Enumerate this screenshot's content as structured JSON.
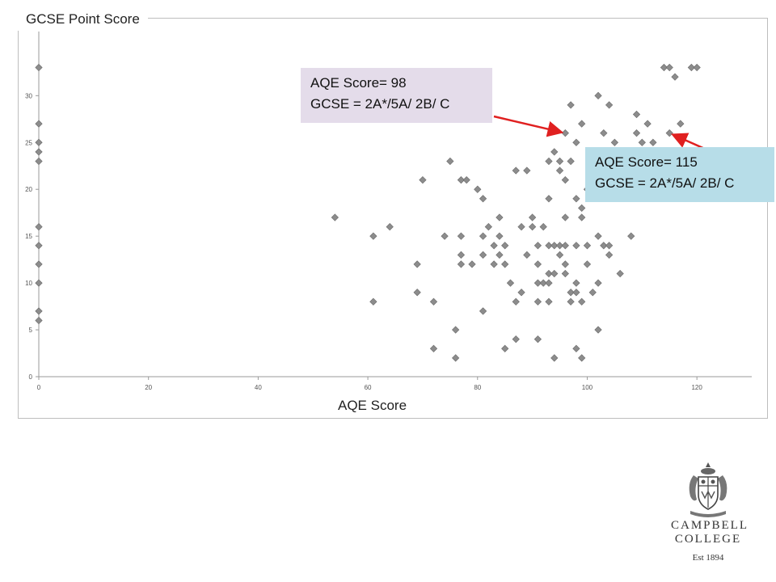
{
  "chart_data": {
    "type": "scatter",
    "ylabel": "GCSE Point Score",
    "xlabel": "AQE Score",
    "xlim": [
      0,
      130
    ],
    "ylim": [
      0,
      36.5
    ],
    "x_ticks": [
      0,
      20,
      40,
      60,
      80,
      100,
      120
    ],
    "y_ticks": [
      0,
      5,
      10,
      15,
      20,
      25,
      30
    ],
    "grid": false,
    "legend": "none",
    "marker": "diamond",
    "marker_color": "#8c8c8c",
    "points": [
      [
        0,
        33
      ],
      [
        0,
        27
      ],
      [
        0,
        25
      ],
      [
        0,
        24
      ],
      [
        0,
        23
      ],
      [
        0,
        16
      ],
      [
        0,
        14
      ],
      [
        0,
        12
      ],
      [
        0,
        10
      ],
      [
        0,
        7
      ],
      [
        0,
        6
      ],
      [
        54,
        17
      ],
      [
        61,
        15
      ],
      [
        61,
        8
      ],
      [
        64,
        16
      ],
      [
        69,
        12
      ],
      [
        69,
        9
      ],
      [
        70,
        21
      ],
      [
        72,
        8
      ],
      [
        72,
        3
      ],
      [
        74,
        15
      ],
      [
        75,
        23
      ],
      [
        76,
        5
      ],
      [
        76,
        2
      ],
      [
        77,
        21
      ],
      [
        77,
        15
      ],
      [
        77,
        13
      ],
      [
        77,
        12
      ],
      [
        78,
        21
      ],
      [
        79,
        12
      ],
      [
        80,
        20
      ],
      [
        81,
        19
      ],
      [
        81,
        15
      ],
      [
        81,
        13
      ],
      [
        81,
        7
      ],
      [
        82,
        16
      ],
      [
        83,
        14
      ],
      [
        83,
        12
      ],
      [
        84,
        17
      ],
      [
        84,
        15
      ],
      [
        84,
        13
      ],
      [
        85,
        14
      ],
      [
        85,
        12
      ],
      [
        85,
        3
      ],
      [
        86,
        10
      ],
      [
        87,
        22
      ],
      [
        87,
        8
      ],
      [
        87,
        4
      ],
      [
        88,
        16
      ],
      [
        88,
        9
      ],
      [
        89,
        22
      ],
      [
        89,
        13
      ],
      [
        90,
        17
      ],
      [
        90,
        16
      ],
      [
        91,
        14
      ],
      [
        91,
        12
      ],
      [
        91,
        10
      ],
      [
        91,
        8
      ],
      [
        91,
        4
      ],
      [
        92,
        16
      ],
      [
        92,
        10
      ],
      [
        93,
        23
      ],
      [
        93,
        19
      ],
      [
        93,
        14
      ],
      [
        93,
        11
      ],
      [
        93,
        10
      ],
      [
        93,
        8
      ],
      [
        94,
        24
      ],
      [
        94,
        14
      ],
      [
        94,
        11
      ],
      [
        94,
        2
      ],
      [
        95,
        23
      ],
      [
        95,
        22
      ],
      [
        95,
        14
      ],
      [
        95,
        13
      ],
      [
        96,
        26
      ],
      [
        96,
        21
      ],
      [
        96,
        17
      ],
      [
        96,
        14
      ],
      [
        96,
        12
      ],
      [
        96,
        11
      ],
      [
        97,
        29
      ],
      [
        97,
        23
      ],
      [
        97,
        9
      ],
      [
        97,
        8
      ],
      [
        98,
        25
      ],
      [
        98,
        19
      ],
      [
        98,
        14
      ],
      [
        98,
        10
      ],
      [
        98,
        9
      ],
      [
        98,
        3
      ],
      [
        99,
        27
      ],
      [
        99,
        18
      ],
      [
        99,
        17
      ],
      [
        99,
        8
      ],
      [
        99,
        2
      ],
      [
        100,
        20
      ],
      [
        100,
        14
      ],
      [
        100,
        12
      ],
      [
        101,
        21
      ],
      [
        101,
        9
      ],
      [
        102,
        30
      ],
      [
        102,
        15
      ],
      [
        102,
        10
      ],
      [
        102,
        5
      ],
      [
        103,
        26
      ],
      [
        103,
        23
      ],
      [
        103,
        14
      ],
      [
        104,
        29
      ],
      [
        104,
        14
      ],
      [
        104,
        13
      ],
      [
        105,
        25
      ],
      [
        106,
        11
      ],
      [
        108,
        15
      ],
      [
        109,
        28
      ],
      [
        109,
        26
      ],
      [
        110,
        25
      ],
      [
        111,
        27
      ],
      [
        112,
        25
      ],
      [
        114,
        33
      ],
      [
        115,
        33
      ],
      [
        115,
        26
      ],
      [
        116,
        32
      ],
      [
        117,
        27
      ],
      [
        119,
        33
      ],
      [
        120,
        33
      ]
    ]
  },
  "callouts": [
    {
      "line1": "AQE Score= 98",
      "line2": "GCSE = 2A*/5A/ 2B/ C",
      "bg": "#e4dcea"
    },
    {
      "line1": "AQE Score= 115",
      "line2": "GCSE = 2A*/5A/ 2B/ C",
      "bg": "#b7dde8"
    }
  ],
  "annotation_arrow_color": "#e02020",
  "logo": {
    "line1": "CAMPBELL",
    "line2": "COLLEGE",
    "est": "Est 1894"
  }
}
